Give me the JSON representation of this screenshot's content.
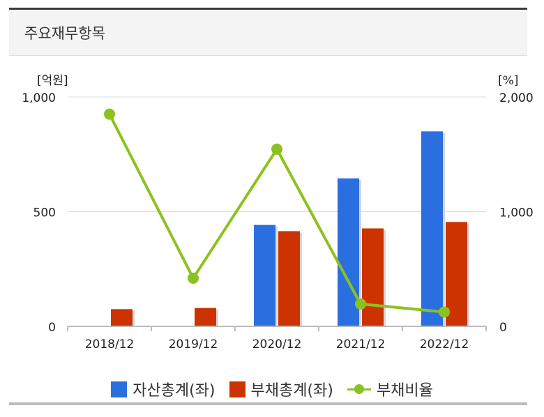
{
  "header": {
    "title": "주요재무항목"
  },
  "chart_data": {
    "type": "bar",
    "title": "",
    "categories": [
      "2018/12",
      "2019/12",
      "2020/12",
      "2021/12",
      "2022/12"
    ],
    "left_axis": {
      "unit_label": "[억원]",
      "ylim": [
        0,
        1000
      ],
      "ticks": [
        0,
        500,
        1000
      ],
      "tick_labels": [
        "0",
        "500",
        "1,000"
      ]
    },
    "right_axis": {
      "unit_label": "[%]",
      "ylim": [
        0,
        2000
      ],
      "ticks": [
        0,
        1000,
        2000
      ],
      "tick_labels": [
        "0",
        "1,000",
        "2,000"
      ]
    },
    "grid": "horizontal",
    "legend_position": "bottom",
    "series": [
      {
        "name": "자산총계(좌)",
        "type": "bar",
        "axis": "left",
        "color": "#2a6fe0",
        "values": [
          null,
          null,
          442,
          645,
          850
        ]
      },
      {
        "name": "부채총계(좌)",
        "type": "bar",
        "axis": "left",
        "color": "#cc3300",
        "values": [
          75,
          80,
          415,
          427,
          455
        ]
      },
      {
        "name": "부채비율",
        "type": "line",
        "axis": "right",
        "color": "#8cc21f",
        "values": [
          1850,
          420,
          1545,
          195,
          125
        ]
      }
    ]
  }
}
